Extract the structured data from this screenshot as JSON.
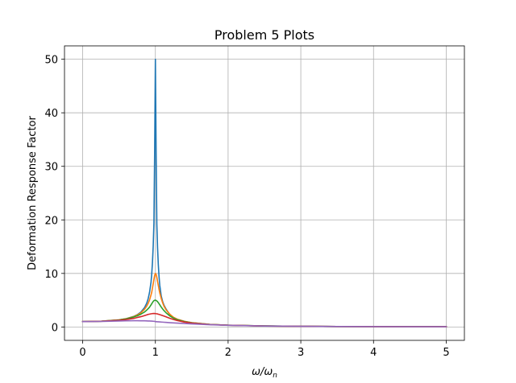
{
  "chart_data": {
    "type": "line",
    "title": "Problem 5 Plots",
    "xlabel": "ω/ωn",
    "xlabel_parts": {
      "main": "ω/ω",
      "sub": "n"
    },
    "ylabel": "Deformation Response Factor",
    "xlim": [
      -0.25,
      5.25
    ],
    "ylim": [
      -2.5,
      52.5
    ],
    "xticks": [
      0,
      1,
      2,
      3,
      4,
      5
    ],
    "xtick_labels": [
      "0",
      "1",
      "2",
      "3",
      "4",
      "5"
    ],
    "yticks": [
      0,
      10,
      20,
      30,
      40,
      50
    ],
    "ytick_labels": [
      "0",
      "10",
      "20",
      "30",
      "40",
      "50"
    ],
    "grid": true,
    "legend": "none",
    "x_range": [
      0,
      5
    ],
    "series": [
      {
        "color": "#1f77b4",
        "x": [
          0,
          0.25,
          0.5,
          0.6,
          0.7,
          0.75,
          0.8,
          0.85,
          0.88,
          0.9,
          0.92,
          0.94,
          0.95,
          0.96,
          0.97,
          0.98,
          0.99,
          1.0,
          1.01,
          1.02,
          1.03,
          1.04,
          1.05,
          1.06,
          1.08,
          1.1,
          1.12,
          1.15,
          1.2,
          1.25,
          1.3,
          1.4,
          1.5,
          1.75,
          2.0,
          2.5,
          3.0,
          3.5,
          4.0,
          4.5,
          5.0
        ],
        "values": [
          1.0,
          1.07,
          1.33,
          1.56,
          1.96,
          2.29,
          2.77,
          3.6,
          4.42,
          5.24,
          6.49,
          8.38,
          9.94,
          12.1,
          15.1,
          19.4,
          32.8,
          50.0,
          32.7,
          19.2,
          14.8,
          11.7,
          9.46,
          7.82,
          5.81,
          4.73,
          4.02,
          3.27,
          2.27,
          1.78,
          1.45,
          1.04,
          0.8,
          0.48,
          0.33,
          0.19,
          0.125,
          0.089,
          0.067,
          0.052,
          0.042
        ]
      },
      {
        "color": "#ff7f0e",
        "x": [
          0,
          0.25,
          0.5,
          0.6,
          0.7,
          0.75,
          0.8,
          0.85,
          0.88,
          0.9,
          0.92,
          0.94,
          0.95,
          0.96,
          0.97,
          0.98,
          0.99,
          1.0,
          1.01,
          1.02,
          1.03,
          1.04,
          1.05,
          1.06,
          1.08,
          1.1,
          1.12,
          1.15,
          1.2,
          1.25,
          1.3,
          1.4,
          1.5,
          1.75,
          2.0,
          2.5,
          3.0,
          3.5,
          4.0,
          4.5,
          5.0
        ],
        "values": [
          1.0,
          1.07,
          1.33,
          1.56,
          1.93,
          2.23,
          2.64,
          3.29,
          3.88,
          4.4,
          5.06,
          5.99,
          6.5,
          7.28,
          8.07,
          8.9,
          9.62,
          10.0,
          9.81,
          9.28,
          8.51,
          7.77,
          7.05,
          6.38,
          5.34,
          4.5,
          3.83,
          3.13,
          2.36,
          1.78,
          1.45,
          1.04,
          0.8,
          0.48,
          0.33,
          0.19,
          0.125,
          0.089,
          0.067,
          0.052,
          0.042
        ]
      },
      {
        "color": "#2ca02c",
        "x": [
          0,
          0.25,
          0.5,
          0.6,
          0.7,
          0.75,
          0.8,
          0.85,
          0.88,
          0.9,
          0.92,
          0.94,
          0.95,
          0.96,
          0.97,
          0.98,
          0.99,
          1.0,
          1.01,
          1.02,
          1.03,
          1.04,
          1.05,
          1.06,
          1.08,
          1.1,
          1.12,
          1.15,
          1.2,
          1.25,
          1.3,
          1.4,
          1.5,
          1.75,
          2.0,
          2.5,
          3.0,
          3.5,
          4.0,
          4.5,
          5.0
        ],
        "values": [
          1.0,
          1.06,
          1.31,
          1.52,
          1.85,
          2.08,
          2.39,
          2.79,
          3.14,
          3.41,
          3.71,
          4.12,
          4.35,
          4.55,
          4.77,
          4.92,
          4.98,
          5.0,
          4.95,
          4.86,
          4.72,
          4.55,
          4.35,
          4.14,
          3.73,
          3.36,
          3.03,
          2.61,
          2.05,
          1.64,
          1.34,
          0.99,
          0.77,
          0.47,
          0.33,
          0.19,
          0.125,
          0.089,
          0.067,
          0.052,
          0.042
        ]
      },
      {
        "color": "#d62728",
        "x": [
          0,
          0.25,
          0.5,
          0.6,
          0.7,
          0.75,
          0.8,
          0.85,
          0.88,
          0.9,
          0.92,
          0.94,
          0.95,
          0.96,
          0.97,
          0.98,
          0.99,
          1.0,
          1.01,
          1.02,
          1.03,
          1.04,
          1.05,
          1.06,
          1.08,
          1.1,
          1.12,
          1.15,
          1.2,
          1.25,
          1.3,
          1.4,
          1.5,
          1.75,
          2.0,
          2.5,
          3.0,
          3.5,
          4.0,
          4.5,
          5.0
        ],
        "values": [
          1.0,
          1.06,
          1.25,
          1.39,
          1.6,
          1.77,
          1.92,
          2.12,
          2.25,
          2.35,
          2.4,
          2.46,
          2.48,
          2.5,
          2.51,
          2.52,
          2.51,
          2.5,
          2.48,
          2.46,
          2.43,
          2.39,
          2.35,
          2.31,
          2.22,
          2.12,
          2.02,
          1.87,
          1.62,
          1.39,
          1.2,
          0.91,
          0.72,
          0.45,
          0.32,
          0.18,
          0.123,
          0.088,
          0.066,
          0.052,
          0.042
        ]
      },
      {
        "color": "#9467bd",
        "x": [
          0,
          0.25,
          0.5,
          0.6,
          0.7,
          0.75,
          0.8,
          0.85,
          0.88,
          0.9,
          0.92,
          0.94,
          0.95,
          0.96,
          0.97,
          0.98,
          0.99,
          1.0,
          1.01,
          1.02,
          1.03,
          1.04,
          1.05,
          1.06,
          1.08,
          1.1,
          1.12,
          1.15,
          1.2,
          1.25,
          1.3,
          1.4,
          1.5,
          1.75,
          2.0,
          2.5,
          3.0,
          3.5,
          4.0,
          4.5,
          5.0
        ],
        "values": [
          1.0,
          1.03,
          1.11,
          1.15,
          1.17,
          1.17,
          1.16,
          1.15,
          1.14,
          1.12,
          1.11,
          1.1,
          1.09,
          1.08,
          1.07,
          1.06,
          1.05,
          1.0,
          0.99,
          0.98,
          0.97,
          0.96,
          0.95,
          0.94,
          0.92,
          0.9,
          0.88,
          0.85,
          0.8,
          0.76,
          0.72,
          0.64,
          0.57,
          0.42,
          0.31,
          0.18,
          0.12,
          0.087,
          0.066,
          0.051,
          0.041
        ]
      }
    ]
  }
}
